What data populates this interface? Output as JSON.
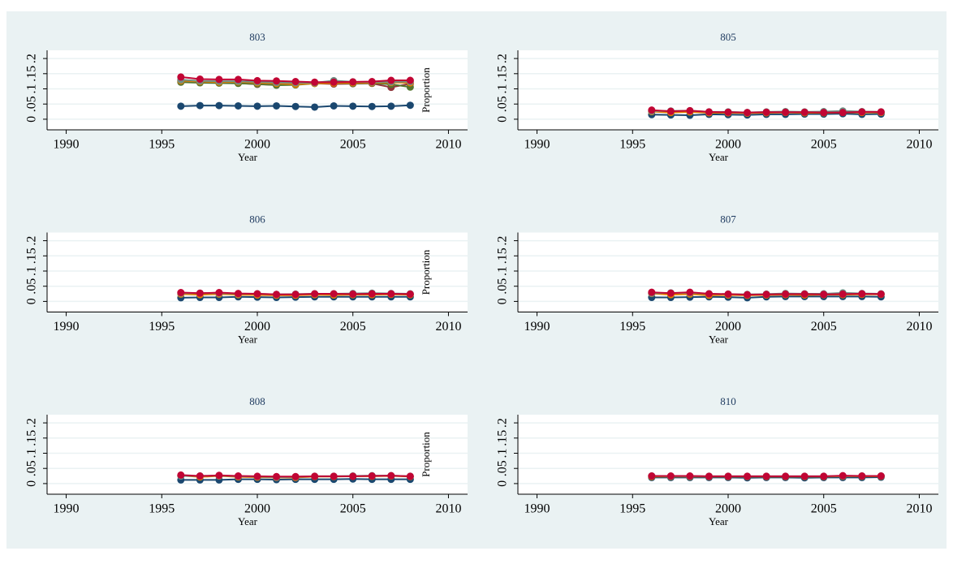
{
  "chart_data": [
    {
      "type": "line",
      "title": "803",
      "xlabel": "Year",
      "ylabel": "Proportion",
      "x": [
        1996,
        1997,
        1998,
        1999,
        2000,
        2001,
        2002,
        2003,
        2004,
        2005,
        2006,
        2007,
        2008
      ],
      "xlim": [
        1989,
        2011
      ],
      "xticks": [
        1990,
        1995,
        2000,
        2005,
        2010
      ],
      "ylim": [
        -0.035,
        0.227
      ],
      "yticks": [
        0,
        {
          "value": 0.05,
          "label": ".05"
        },
        {
          "value": 0.1,
          "label": ".1"
        },
        {
          "value": 0.15,
          "label": ".15"
        },
        {
          "value": 0.2,
          "label": ".2"
        }
      ],
      "series": [
        {
          "color": "#1a476f",
          "values": [
            0.043,
            0.045,
            0.045,
            0.044,
            0.043,
            0.044,
            0.042,
            0.04,
            0.044,
            0.043,
            0.042,
            0.043,
            0.046
          ]
        },
        {
          "color": "#90353b",
          "values": [
            0.125,
            0.122,
            0.12,
            0.119,
            0.115,
            0.113,
            0.117,
            0.118,
            0.116,
            0.117,
            0.118,
            0.105,
            0.117
          ]
        },
        {
          "color": "#55752f",
          "values": [
            0.122,
            0.12,
            0.119,
            0.118,
            0.116,
            0.112,
            0.113,
            0.118,
            0.119,
            0.118,
            0.119,
            0.115,
            0.106
          ]
        },
        {
          "color": "#e37e00",
          "values": [
            0.127,
            0.124,
            0.122,
            0.123,
            0.12,
            0.118,
            0.115,
            0.118,
            0.119,
            0.12,
            0.12,
            0.121,
            0.12
          ]
        },
        {
          "color": "#6e8e84",
          "values": [
            0.13,
            0.126,
            0.125,
            0.125,
            0.123,
            0.121,
            0.12,
            0.12,
            0.127,
            0.123,
            0.122,
            0.123,
            0.124
          ]
        },
        {
          "color": "#c10534",
          "values": [
            0.139,
            0.132,
            0.131,
            0.131,
            0.127,
            0.126,
            0.124,
            0.122,
            0.122,
            0.123,
            0.124,
            0.128,
            0.128
          ]
        }
      ]
    },
    {
      "type": "line",
      "title": "805",
      "xlabel": "Year",
      "x": [
        1996,
        1997,
        1998,
        1999,
        2000,
        2001,
        2002,
        2003,
        2004,
        2005,
        2006,
        2007,
        2008
      ],
      "xlim": [
        1989,
        2011
      ],
      "xticks": [
        1990,
        1995,
        2000,
        2005,
        2010
      ],
      "ylim": [
        -0.035,
        0.227
      ],
      "yticks": [
        0,
        {
          "value": 0.05,
          "label": ".05"
        },
        {
          "value": 0.1,
          "label": ".1"
        },
        {
          "value": 0.15,
          "label": ".15"
        },
        {
          "value": 0.2,
          "label": ".2"
        }
      ],
      "series": [
        {
          "color": "#1a476f",
          "values": [
            0.015,
            0.014,
            0.013,
            0.016,
            0.015,
            0.014,
            0.016,
            0.016,
            0.017,
            0.017,
            0.018,
            0.016,
            0.017
          ]
        },
        {
          "color": "#e37e00",
          "values": [
            0.025,
            0.022,
            0.024,
            0.021,
            0.021,
            0.02,
            0.021,
            0.022,
            0.021,
            0.021,
            0.022,
            0.022,
            0.022
          ]
        },
        {
          "color": "#6e8e84",
          "values": [
            0.027,
            0.027,
            0.028,
            0.024,
            0.024,
            0.022,
            0.024,
            0.025,
            0.024,
            0.025,
            0.027,
            0.025,
            0.024
          ]
        },
        {
          "color": "#c10534",
          "values": [
            0.03,
            0.026,
            0.028,
            0.024,
            0.023,
            0.022,
            0.023,
            0.023,
            0.023,
            0.022,
            0.022,
            0.024,
            0.024
          ]
        }
      ]
    },
    {
      "type": "line",
      "title": "806",
      "xlabel": "Year",
      "ylabel": "Proportion",
      "x": [
        1996,
        1997,
        1998,
        1999,
        2000,
        2001,
        2002,
        2003,
        2004,
        2005,
        2006,
        2007,
        2008
      ],
      "xlim": [
        1989,
        2011
      ],
      "xticks": [
        1990,
        1995,
        2000,
        2005,
        2010
      ],
      "ylim": [
        -0.035,
        0.227
      ],
      "yticks": [
        0,
        {
          "value": 0.05,
          "label": ".05"
        },
        {
          "value": 0.1,
          "label": ".1"
        },
        {
          "value": 0.15,
          "label": ".15"
        },
        {
          "value": 0.2,
          "label": ".2"
        }
      ],
      "series": [
        {
          "color": "#1a476f",
          "values": [
            0.012,
            0.013,
            0.013,
            0.015,
            0.014,
            0.013,
            0.014,
            0.015,
            0.015,
            0.015,
            0.015,
            0.015,
            0.015
          ]
        },
        {
          "color": "#e37e00",
          "values": [
            0.024,
            0.022,
            0.024,
            0.022,
            0.021,
            0.02,
            0.02,
            0.022,
            0.021,
            0.022,
            0.022,
            0.023,
            0.022
          ]
        },
        {
          "color": "#6e8e84",
          "values": [
            0.027,
            0.027,
            0.027,
            0.025,
            0.025,
            0.023,
            0.024,
            0.025,
            0.025,
            0.026,
            0.027,
            0.026,
            0.025
          ]
        },
        {
          "color": "#c10534",
          "values": [
            0.029,
            0.027,
            0.029,
            0.026,
            0.025,
            0.023,
            0.023,
            0.025,
            0.025,
            0.024,
            0.025,
            0.025,
            0.024
          ]
        }
      ]
    },
    {
      "type": "line",
      "title": "807",
      "xlabel": "Year",
      "x": [
        1996,
        1997,
        1998,
        1999,
        2000,
        2001,
        2002,
        2003,
        2004,
        2005,
        2006,
        2007,
        2008
      ],
      "xlim": [
        1989,
        2011
      ],
      "xticks": [
        1990,
        1995,
        2000,
        2005,
        2010
      ],
      "ylim": [
        -0.035,
        0.227
      ],
      "yticks": [
        0,
        {
          "value": 0.05,
          "label": ".05"
        },
        {
          "value": 0.1,
          "label": ".1"
        },
        {
          "value": 0.15,
          "label": ".15"
        },
        {
          "value": 0.2,
          "label": ".2"
        }
      ],
      "series": [
        {
          "color": "#1a476f",
          "values": [
            0.013,
            0.013,
            0.014,
            0.015,
            0.014,
            0.012,
            0.015,
            0.016,
            0.016,
            0.016,
            0.016,
            0.016,
            0.015
          ]
        },
        {
          "color": "#e37e00",
          "values": [
            0.026,
            0.022,
            0.024,
            0.02,
            0.021,
            0.02,
            0.021,
            0.022,
            0.021,
            0.022,
            0.022,
            0.023,
            0.023
          ]
        },
        {
          "color": "#6e8e84",
          "values": [
            0.027,
            0.028,
            0.028,
            0.025,
            0.024,
            0.023,
            0.024,
            0.026,
            0.025,
            0.025,
            0.028,
            0.026,
            0.025
          ]
        },
        {
          "color": "#c10534",
          "values": [
            0.03,
            0.027,
            0.03,
            0.025,
            0.024,
            0.022,
            0.023,
            0.024,
            0.024,
            0.023,
            0.024,
            0.025,
            0.024
          ]
        }
      ]
    },
    {
      "type": "line",
      "title": "808",
      "xlabel": "Year",
      "ylabel": "Proportion",
      "x": [
        1996,
        1997,
        1998,
        1999,
        2000,
        2001,
        2002,
        2003,
        2004,
        2005,
        2006,
        2007,
        2008
      ],
      "xlim": [
        1989,
        2011
      ],
      "xticks": [
        1990,
        1995,
        2000,
        2005,
        2010
      ],
      "ylim": [
        -0.035,
        0.227
      ],
      "yticks": [
        0,
        {
          "value": 0.05,
          "label": ".05"
        },
        {
          "value": 0.1,
          "label": ".1"
        },
        {
          "value": 0.15,
          "label": ".15"
        },
        {
          "value": 0.2,
          "label": ".2"
        }
      ],
      "series": [
        {
          "color": "#1a476f",
          "values": [
            0.012,
            0.012,
            0.012,
            0.014,
            0.014,
            0.013,
            0.014,
            0.014,
            0.014,
            0.015,
            0.014,
            0.014,
            0.014
          ]
        },
        {
          "color": "#e37e00",
          "values": [
            0.026,
            0.022,
            0.025,
            0.022,
            0.021,
            0.02,
            0.02,
            0.023,
            0.023,
            0.024,
            0.024,
            0.025,
            0.023
          ]
        },
        {
          "color": "#6e8e84",
          "values": [
            0.025,
            0.025,
            0.026,
            0.024,
            0.023,
            0.021,
            0.022,
            0.024,
            0.024,
            0.025,
            0.026,
            0.026,
            0.024
          ]
        },
        {
          "color": "#c10534",
          "values": [
            0.028,
            0.025,
            0.027,
            0.025,
            0.024,
            0.023,
            0.023,
            0.024,
            0.024,
            0.024,
            0.025,
            0.026,
            0.024
          ]
        }
      ]
    },
    {
      "type": "line",
      "title": "810",
      "xlabel": "Year",
      "x": [
        1996,
        1997,
        1998,
        1999,
        2000,
        2001,
        2002,
        2003,
        2004,
        2005,
        2006,
        2007,
        2008
      ],
      "xlim": [
        1989,
        2011
      ],
      "xticks": [
        1990,
        1995,
        2000,
        2005,
        2010
      ],
      "ylim": [
        -0.035,
        0.227
      ],
      "yticks": [
        0,
        {
          "value": 0.05,
          "label": ".05"
        },
        {
          "value": 0.1,
          "label": ".1"
        },
        {
          "value": 0.15,
          "label": ".15"
        },
        {
          "value": 0.2,
          "label": ".2"
        }
      ],
      "series": [
        {
          "color": "#1a476f",
          "values": [
            0.02,
            0.02,
            0.02,
            0.02,
            0.02,
            0.019,
            0.02,
            0.02,
            0.019,
            0.02,
            0.02,
            0.02,
            0.021
          ]
        },
        {
          "color": "#e37e00",
          "values": [
            0.023,
            0.023,
            0.023,
            0.023,
            0.023,
            0.023,
            0.023,
            0.023,
            0.023,
            0.023,
            0.024,
            0.024,
            0.024
          ]
        },
        {
          "color": "#6e8e84",
          "values": [
            0.025,
            0.024,
            0.024,
            0.024,
            0.024,
            0.024,
            0.024,
            0.024,
            0.024,
            0.024,
            0.025,
            0.025,
            0.025
          ]
        },
        {
          "color": "#c10534",
          "values": [
            0.025,
            0.025,
            0.025,
            0.024,
            0.024,
            0.024,
            0.024,
            0.024,
            0.024,
            0.024,
            0.026,
            0.025,
            0.025
          ]
        }
      ]
    }
  ]
}
